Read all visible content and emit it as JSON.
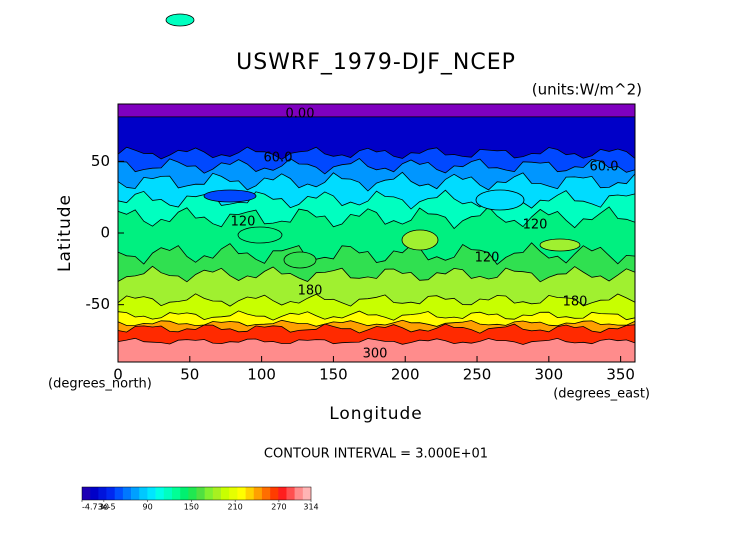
{
  "chart_data": {
    "type": "contour",
    "title": "USWRF_1979-DJF_NCEP",
    "subtitle": "(units:W/m^2)",
    "x_label": "Longitude",
    "y_label": "Latitude",
    "x_unit_label": "(degrees_east)",
    "y_unit_label": "(degrees_north)",
    "footer": "CONTOUR INTERVAL = 3.000E+01",
    "xlim": [
      0,
      360
    ],
    "xticks": [
      0,
      50,
      100,
      150,
      200,
      250,
      300,
      350
    ],
    "ylim": [
      -90,
      90
    ],
    "yticks": [
      -50,
      0,
      50
    ],
    "contour_labels": [
      "0.00",
      "60.0",
      "60.0",
      "120",
      "120",
      "120",
      "180",
      "180",
      "300"
    ],
    "colorbar": {
      "lim": [
        0,
        314
      ],
      "ticks": [
        {
          "value": -4.73e-05,
          "label": "-4.73e-5"
        },
        30,
        90,
        150,
        210,
        270,
        314
      ],
      "colors": [
        "#1e00b4",
        "#0000c8",
        "#0014dc",
        "#0028f0",
        "#0050ff",
        "#0078ff",
        "#00a0ff",
        "#00c8ff",
        "#00e6ff",
        "#00ffe6",
        "#00ffc0",
        "#00ff96",
        "#00f070",
        "#20e850",
        "#50e040",
        "#80f030",
        "#a8f020",
        "#c8ff00",
        "#e6ff00",
        "#ffff00",
        "#ffd200",
        "#ffa000",
        "#ff6e00",
        "#ff3c00",
        "#ff1e1e",
        "#ff5050",
        "#ff8c8c",
        "#ffb4b4"
      ]
    }
  }
}
